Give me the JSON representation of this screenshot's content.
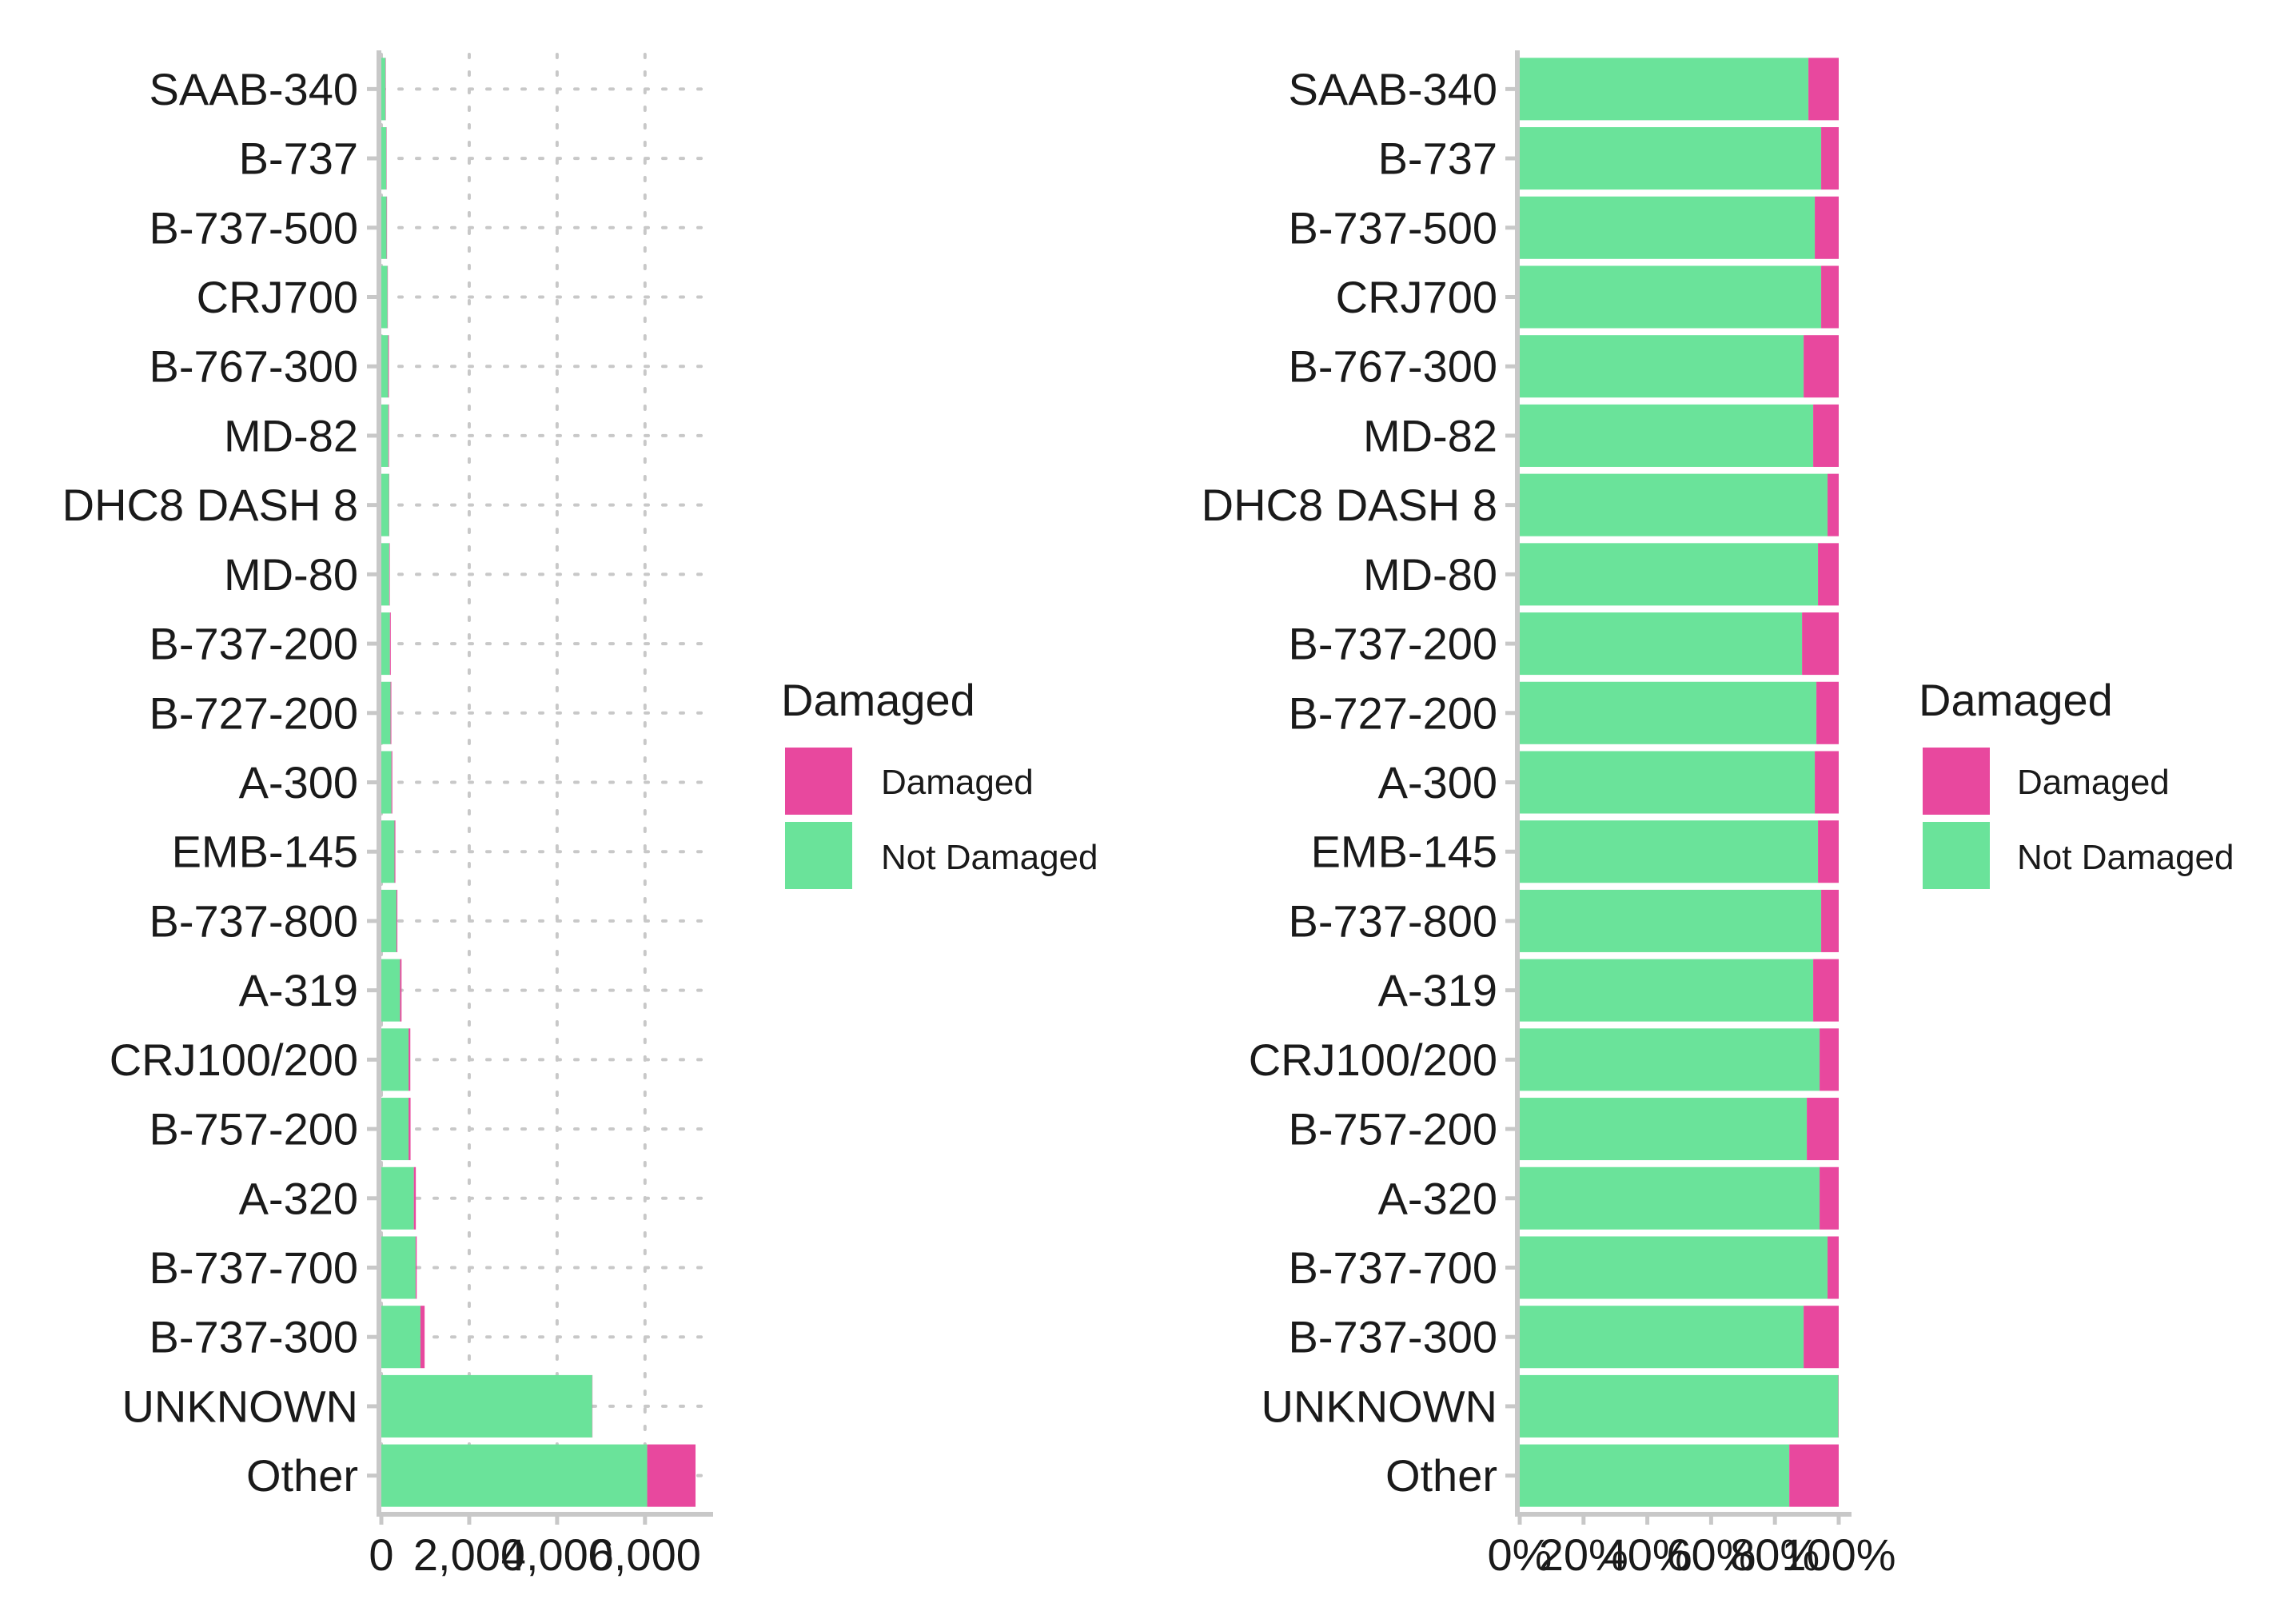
{
  "colors": {
    "damaged": "#E8489E",
    "not_damaged": "#6AE39A",
    "grid": "#c8c8c8",
    "axis": "#c8c8c8"
  },
  "legend": {
    "title": "Damaged",
    "items": [
      {
        "label": "Damaged",
        "color": "#E8489E"
      },
      {
        "label": "Not Damaged",
        "color": "#6AE39A"
      }
    ]
  },
  "chart_data": [
    {
      "type": "bar",
      "orientation": "horizontal",
      "stacked": true,
      "categories": [
        "SAAB-340",
        "B-737",
        "B-737-500",
        "CRJ700",
        "B-767-300",
        "MD-82",
        "DHC8 DASH 8",
        "MD-80",
        "B-737-200",
        "B-727-200",
        "A-300",
        "EMB-145",
        "B-737-800",
        "A-319",
        "CRJ100/200",
        "B-757-200",
        "A-320",
        "B-737-700",
        "B-737-300",
        "UNKNOWN",
        "Other"
      ],
      "series": [
        {
          "name": "Not Damaged",
          "values": [
            95,
            115,
            120,
            140,
            155,
            160,
            175,
            180,
            195,
            210,
            230,
            300,
            345,
            425,
            620,
            620,
            740,
            780,
            890,
            4800,
            6050
          ]
        },
        {
          "name": "Damaged",
          "values": [
            8,
            7,
            10,
            8,
            17,
            14,
            6,
            12,
            20,
            18,
            20,
            20,
            20,
            35,
            40,
            45,
            45,
            25,
            95,
            5,
            1100
          ]
        }
      ],
      "xlim": [
        0,
        7550
      ],
      "xticks": [
        0,
        2000,
        4000,
        6000
      ],
      "xtick_labels": [
        "0",
        "2,000",
        "4,000",
        "6,000"
      ],
      "grid": true,
      "legend_position": "right"
    },
    {
      "type": "bar",
      "orientation": "horizontal",
      "stacked": true,
      "normalized": true,
      "categories": [
        "SAAB-340",
        "B-737",
        "B-737-500",
        "CRJ700",
        "B-767-300",
        "MD-82",
        "DHC8 DASH 8",
        "MD-80",
        "B-737-200",
        "B-727-200",
        "A-300",
        "EMB-145",
        "B-737-800",
        "A-319",
        "CRJ100/200",
        "B-757-200",
        "A-320",
        "B-737-700",
        "B-737-300",
        "UNKNOWN",
        "Other"
      ],
      "series": [
        {
          "name": "Not Damaged",
          "values": [
            90.5,
            94.5,
            92.5,
            94.5,
            89,
            92,
            96.5,
            93.5,
            88.5,
            93,
            92.5,
            93.5,
            94.5,
            92,
            94,
            90,
            94,
            96.5,
            89,
            99.9,
            84.5
          ]
        },
        {
          "name": "Damaged",
          "values": [
            9.5,
            5.5,
            7.5,
            5.5,
            11,
            8,
            3.5,
            6.5,
            11.5,
            7,
            7.5,
            6.5,
            5.5,
            8,
            6,
            10,
            6,
            3.5,
            11,
            0.1,
            15.5
          ]
        }
      ],
      "xlim": [
        0,
        100
      ],
      "xticks": [
        0,
        20,
        40,
        60,
        80,
        100
      ],
      "xtick_labels": [
        "0%",
        "20%",
        "40%",
        "60%",
        "80%",
        "100%"
      ],
      "grid": false,
      "legend_position": "right"
    }
  ]
}
